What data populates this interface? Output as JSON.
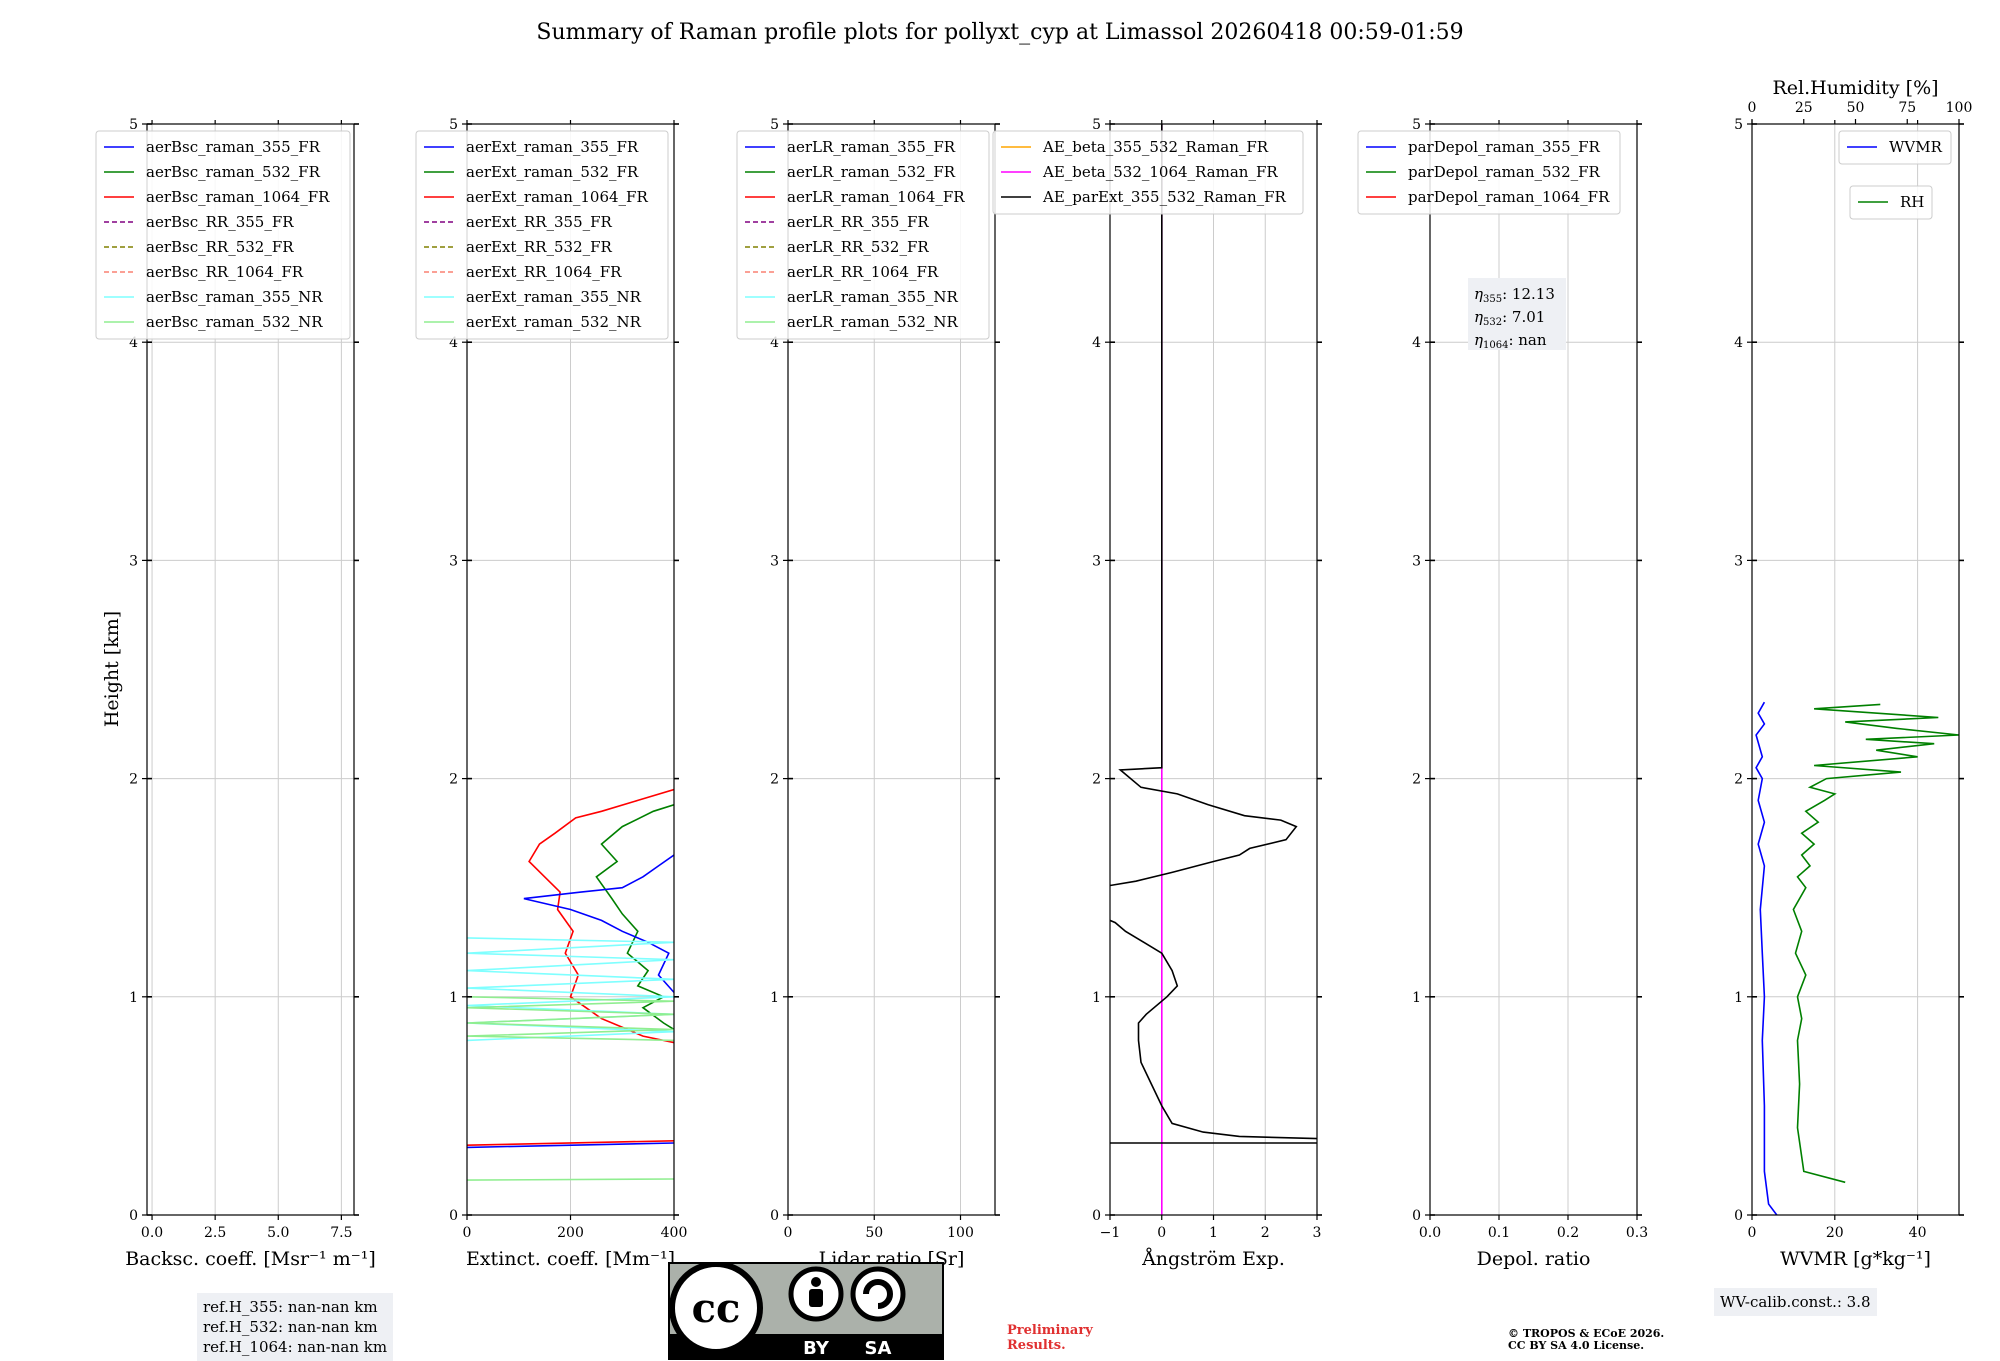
{
  "title": "Summary of Raman profile plots for pollyxt_cyp at Limassol 20260418 00:59-01:59",
  "y_label": "Height [km]",
  "colors": {
    "blue": "#0000ff",
    "green": "#008000",
    "red": "#ff0000",
    "purple": "#800080",
    "olive": "#808000",
    "salmon": "#fa8072",
    "cyan": "#7fffff",
    "lightgreen": "#90ee90",
    "orange": "#ffa500",
    "magenta": "#ff00ff",
    "black": "#000000"
  },
  "chart_data": [
    {
      "type": "line",
      "xlabel": "Backsc. coeff. [Msr⁻¹ m⁻¹]",
      "xlim": [
        -0.2,
        8
      ],
      "ylim": [
        0,
        5
      ],
      "xticks": [
        "0.0",
        "2.5",
        "5.0",
        "7.5"
      ],
      "xtick_values": [
        0,
        2.5,
        5,
        7.5
      ],
      "yticks": [
        "0",
        "1",
        "2",
        "3",
        "4",
        "5"
      ],
      "legend": [
        {
          "label": "aerBsc_raman_355_FR",
          "color": "blue",
          "style": "solid"
        },
        {
          "label": "aerBsc_raman_532_FR",
          "color": "green",
          "style": "solid"
        },
        {
          "label": "aerBsc_raman_1064_FR",
          "color": "red",
          "style": "solid"
        },
        {
          "label": "aerBsc_RR_355_FR",
          "color": "purple",
          "style": "dashed"
        },
        {
          "label": "aerBsc_RR_532_FR",
          "color": "olive",
          "style": "dashed"
        },
        {
          "label": "aerBsc_RR_1064_FR",
          "color": "salmon",
          "style": "dashed"
        },
        {
          "label": "aerBsc_raman_355_NR",
          "color": "cyan",
          "style": "solid"
        },
        {
          "label": "aerBsc_raman_532_NR",
          "color": "lightgreen",
          "style": "solid"
        }
      ],
      "series": []
    },
    {
      "type": "line",
      "xlabel": "Extinct. coeff. [Mm⁻¹]",
      "xlim": [
        0,
        400
      ],
      "ylim": [
        0,
        5
      ],
      "xticks": [
        "0",
        "200",
        "400"
      ],
      "xtick_values": [
        0,
        200,
        400
      ],
      "yticks": [
        "0",
        "1",
        "2",
        "3",
        "4",
        "5"
      ],
      "legend": [
        {
          "label": "aerExt_raman_355_FR",
          "color": "blue",
          "style": "solid"
        },
        {
          "label": "aerExt_raman_532_FR",
          "color": "green",
          "style": "solid"
        },
        {
          "label": "aerExt_raman_1064_FR",
          "color": "red",
          "style": "solid"
        },
        {
          "label": "aerExt_RR_355_FR",
          "color": "purple",
          "style": "dashed"
        },
        {
          "label": "aerExt_RR_532_FR",
          "color": "olive",
          "style": "dashed"
        },
        {
          "label": "aerExt_RR_1064_FR",
          "color": "salmon",
          "style": "dashed"
        },
        {
          "label": "aerExt_raman_355_NR",
          "color": "cyan",
          "style": "solid"
        },
        {
          "label": "aerExt_raman_532_NR",
          "color": "lightgreen",
          "style": "solid"
        }
      ],
      "series": [
        {
          "name": "aerExt_raman_1064_FR",
          "color": "red",
          "x": [
            400,
            330,
            260,
            210,
            170,
            140,
            120,
            150,
            180,
            175,
            205,
            190,
            215,
            200,
            230,
            260,
            300,
            340,
            400
          ],
          "y": [
            1.95,
            1.9,
            1.85,
            1.82,
            1.75,
            1.7,
            1.62,
            1.55,
            1.48,
            1.4,
            1.3,
            1.2,
            1.1,
            1.0,
            0.95,
            0.9,
            0.86,
            0.82,
            0.79
          ]
        },
        {
          "name": "aerExt_raman_532_FR",
          "color": "green",
          "x": [
            400,
            360,
            300,
            260,
            290,
            250,
            280,
            300,
            330,
            310,
            350,
            330,
            380,
            340,
            380,
            400
          ],
          "y": [
            1.88,
            1.85,
            1.78,
            1.7,
            1.62,
            1.55,
            1.45,
            1.38,
            1.3,
            1.2,
            1.12,
            1.05,
            1.0,
            0.95,
            0.88,
            0.85
          ]
        },
        {
          "name": "aerExt_raman_355_FR",
          "color": "blue",
          "x": [
            400,
            370,
            340,
            300,
            220,
            110,
            200,
            260,
            300,
            350,
            390,
            370,
            400
          ],
          "y": [
            1.65,
            1.6,
            1.55,
            1.5,
            1.48,
            1.45,
            1.4,
            1.35,
            1.3,
            1.25,
            1.2,
            1.1,
            1.02
          ]
        },
        {
          "name": "aerExt_raman_355_NR",
          "color": "cyan",
          "x": [
            0,
            400,
            0,
            400,
            0,
            400,
            0,
            400,
            0,
            400,
            0,
            400,
            0
          ],
          "y": [
            1.27,
            1.25,
            1.2,
            1.17,
            1.12,
            1.08,
            1.04,
            1.0,
            0.96,
            0.92,
            0.88,
            0.84,
            0.8
          ]
        },
        {
          "name": "aerExt_raman_532_NR",
          "color": "lightgreen",
          "x": [
            0,
            400,
            0,
            400,
            0,
            400,
            0,
            400
          ],
          "y": [
            1.0,
            0.98,
            0.95,
            0.92,
            0.88,
            0.85,
            0.82,
            0.8
          ]
        },
        {
          "name": "near_ground_red",
          "color": "red",
          "x": [
            0,
            400
          ],
          "y": [
            0.32,
            0.34
          ]
        },
        {
          "name": "near_ground_blue",
          "color": "blue",
          "x": [
            0,
            400
          ],
          "y": [
            0.31,
            0.33
          ]
        },
        {
          "name": "near_ground_lightgreen",
          "color": "lightgreen",
          "x": [
            0,
            400
          ],
          "y": [
            0.16,
            0.165
          ]
        }
      ]
    },
    {
      "type": "line",
      "xlabel": "Lidar ratio [Sr]",
      "xlim": [
        0,
        120
      ],
      "ylim": [
        0,
        5
      ],
      "xticks": [
        "0",
        "50",
        "100"
      ],
      "xtick_values": [
        0,
        50,
        100
      ],
      "yticks": [
        "0",
        "1",
        "2",
        "3",
        "4",
        "5"
      ],
      "legend": [
        {
          "label": "aerLR_raman_355_FR",
          "color": "blue",
          "style": "solid"
        },
        {
          "label": "aerLR_raman_532_FR",
          "color": "green",
          "style": "solid"
        },
        {
          "label": "aerLR_raman_1064_FR",
          "color": "red",
          "style": "solid"
        },
        {
          "label": "aerLR_RR_355_FR",
          "color": "purple",
          "style": "dashed"
        },
        {
          "label": "aerLR_RR_532_FR",
          "color": "olive",
          "style": "dashed"
        },
        {
          "label": "aerLR_RR_1064_FR",
          "color": "salmon",
          "style": "dashed"
        },
        {
          "label": "aerLR_raman_355_NR",
          "color": "cyan",
          "style": "solid"
        },
        {
          "label": "aerLR_raman_532_NR",
          "color": "lightgreen",
          "style": "solid"
        }
      ],
      "series": []
    },
    {
      "type": "line",
      "xlabel": "Ångström Exp.",
      "xlim": [
        -1,
        3
      ],
      "ylim": [
        0,
        5
      ],
      "xticks": [
        "−1",
        "0",
        "1",
        "2",
        "3"
      ],
      "xtick_values": [
        -1,
        0,
        1,
        2,
        3
      ],
      "yticks": [
        "0",
        "1",
        "2",
        "3",
        "4",
        "5"
      ],
      "legend": [
        {
          "label": "AE_beta_355_532_Raman_FR",
          "color": "orange",
          "style": "solid"
        },
        {
          "label": "AE_beta_532_1064_Raman_FR",
          "color": "magenta",
          "style": "solid"
        },
        {
          "label": "AE_parExt_355_532_Raman_FR",
          "color": "black",
          "style": "solid"
        }
      ],
      "series": [
        {
          "name": "AE_beta_532_1064_Raman_FR",
          "color": "magenta",
          "x": [
            0,
            0
          ],
          "y": [
            0,
            5
          ]
        },
        {
          "name": "AE_parExt_355_532_Raman_FR",
          "color": "black",
          "x": [
            0,
            0,
            -0.8,
            -0.4,
            0.3,
            0.9,
            1.6,
            2.3,
            2.6,
            2.4,
            1.7,
            1.5,
            1.0,
            0.2,
            -0.5,
            -1.0
          ],
          "y": [
            5,
            2.05,
            2.04,
            1.96,
            1.93,
            1.88,
            1.83,
            1.81,
            1.78,
            1.72,
            1.68,
            1.65,
            1.62,
            1.57,
            1.53,
            1.51
          ]
        },
        {
          "name": "AE_parExt_355_532_Raman_FR_low",
          "color": "black",
          "x": [
            -1.0,
            -0.9,
            -0.7,
            0.0,
            0.2,
            0.3,
            0.1,
            -0.3,
            -0.45,
            -0.45,
            -0.4,
            -0.2,
            0.0,
            0.2,
            0.8,
            1.5,
            3.0
          ],
          "y": [
            1.35,
            1.34,
            1.3,
            1.2,
            1.12,
            1.05,
            1.0,
            0.92,
            0.88,
            0.8,
            0.7,
            0.6,
            0.5,
            0.42,
            0.38,
            0.36,
            0.35
          ]
        },
        {
          "name": "AE_near_ground",
          "color": "black",
          "x": [
            -1.0,
            3.0
          ],
          "y": [
            0.33,
            0.33
          ]
        }
      ]
    },
    {
      "type": "line",
      "xlabel": "Depol. ratio",
      "xlim": [
        0,
        0.3
      ],
      "ylim": [
        0,
        5
      ],
      "xticks": [
        "0.0",
        "0.1",
        "0.2",
        "0.3"
      ],
      "xtick_values": [
        0,
        0.1,
        0.2,
        0.3
      ],
      "yticks": [
        "0",
        "1",
        "2",
        "3",
        "4",
        "5"
      ],
      "legend": [
        {
          "label": "parDepol_raman_355_FR",
          "color": "blue",
          "style": "solid"
        },
        {
          "label": "parDepol_raman_532_FR",
          "color": "green",
          "style": "solid"
        },
        {
          "label": "parDepol_raman_1064_FR",
          "color": "red",
          "style": "solid"
        }
      ],
      "series": [],
      "annotation": {
        "eta355": "12.13",
        "eta532": "7.01",
        "eta1064": "nan"
      }
    },
    {
      "type": "line",
      "xlabel": "WVMR [g*kg⁻¹]",
      "xlabel_top": "Rel.Humidity [%]",
      "xlim": [
        0,
        50
      ],
      "xlim_top": [
        0,
        100
      ],
      "ylim": [
        0,
        5
      ],
      "xticks": [
        "0",
        "20",
        "40"
      ],
      "xtick_values": [
        0,
        20,
        40
      ],
      "xticks_top": [
        "0",
        "25",
        "50",
        "75",
        "100"
      ],
      "xtick_top_values": [
        0,
        25,
        50,
        75,
        100
      ],
      "yticks": [
        "0",
        "1",
        "2",
        "3",
        "4",
        "5"
      ],
      "legend": [
        {
          "label": "WVMR",
          "color": "blue",
          "style": "solid"
        }
      ],
      "legend2": [
        {
          "label": "RH",
          "color": "green",
          "style": "solid"
        }
      ],
      "series": [
        {
          "name": "WVMR",
          "color": "blue",
          "x": [
            6,
            4,
            3,
            3,
            2.5,
            3,
            2.5,
            2,
            3,
            1.5,
            3,
            1.5,
            2.5,
            1,
            2.5,
            1,
            3,
            1.5,
            3
          ],
          "y": [
            0,
            0.05,
            0.2,
            0.5,
            0.8,
            1.0,
            1.2,
            1.4,
            1.6,
            1.7,
            1.8,
            1.9,
            2.0,
            2.05,
            2.1,
            2.2,
            2.25,
            2.3,
            2.35
          ]
        },
        {
          "name": "RH",
          "color": "green",
          "x": [
            45,
            25,
            22,
            23,
            22,
            24,
            22,
            26,
            21,
            24,
            20,
            26,
            22,
            28,
            24,
            30,
            24,
            32,
            26,
            35,
            40,
            28,
            36,
            72,
            30,
            80,
            60,
            88,
            55,
            100,
            70,
            45,
            90,
            30,
            62
          ],
          "y": [
            0.15,
            0.2,
            0.4,
            0.6,
            0.8,
            0.9,
            1.0,
            1.1,
            1.2,
            1.3,
            1.4,
            1.5,
            1.55,
            1.6,
            1.65,
            1.7,
            1.75,
            1.8,
            1.85,
            1.9,
            1.93,
            1.96,
            2.0,
            2.03,
            2.06,
            2.1,
            2.13,
            2.16,
            2.18,
            2.2,
            2.23,
            2.26,
            2.28,
            2.32,
            2.34
          ]
        }
      ]
    }
  ],
  "ref_box": {
    "line1": "ref.H_355: nan-nan km",
    "line2": "ref.H_532: nan-nan km",
    "line3": "ref.H_1064: nan-nan km"
  },
  "wv_box": "WV-calib.const.: 3.8",
  "license": {
    "cc": "cc",
    "by": "BY",
    "sa": "SA"
  },
  "preliminary": {
    "line1": "Preliminary",
    "line2": "Results."
  },
  "copyright": {
    "line1": "© TROPOS & ECoE 2026.",
    "line2": "CC BY SA 4.0 License."
  }
}
